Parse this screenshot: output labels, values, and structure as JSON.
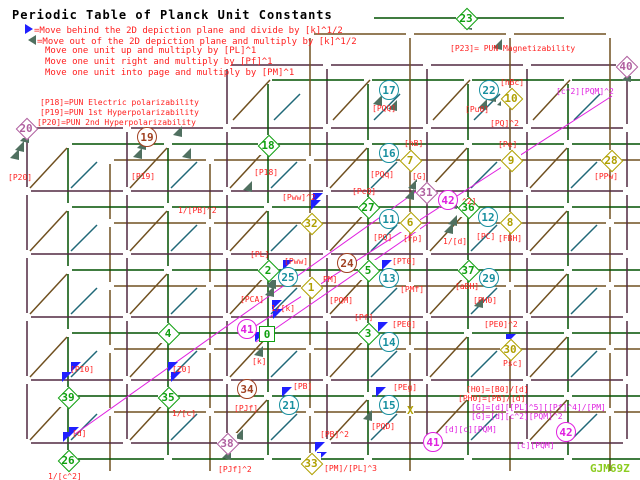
{
  "title": "Periodic Table of Planck Unit Constants",
  "legend": [
    {
      "icon": "blue-arrow-icon",
      "text": "=Move behind the 2D depiction plane and divide by [k]^1/2"
    },
    {
      "icon": "gray-arrow-icon",
      "text": "=Move out of the 2D depiction plane and multiply by [k]^1/2"
    },
    {
      "text": "Move one unit up and multiply by [PL]^1"
    },
    {
      "text": "Move one unit right and multiply by [Pf]^1"
    },
    {
      "text": "Move one unit into page and multiply by [PM]^1"
    }
  ],
  "definitions": [
    "[P18]=PUN Electric polarizability",
    "[P19]=PUN 1st Hyperpolarizability",
    "[P20]=PUN 2nd Hyperpolarizability"
  ],
  "colors": {
    "green": "#10a010",
    "teal": "#1890a0",
    "olive": "#b0a000",
    "brown": "#a04020",
    "purple": "#b060a0",
    "magenta": "#e020e0",
    "label": "#ff2020",
    "grid_front": "#502840",
    "grid_mid": "#005000",
    "grid_back": "#705020",
    "arrow_blue": "#2020ff",
    "arrow_gray": "#507060"
  },
  "nodes": [
    {
      "n": "23",
      "shape": "diamond",
      "color": "green"
    },
    {
      "n": "40",
      "shape": "diamond",
      "color": "purple"
    },
    {
      "n": "17",
      "shape": "circle",
      "color": "teal"
    },
    {
      "n": "22",
      "shape": "circle",
      "color": "teal"
    },
    {
      "n": "10",
      "shape": "diamond",
      "color": "olive"
    },
    {
      "n": "20",
      "shape": "diamond",
      "color": "purple"
    },
    {
      "n": "19",
      "shape": "circle",
      "color": "brown"
    },
    {
      "n": "18",
      "shape": "diamond",
      "color": "green"
    },
    {
      "n": "16",
      "shape": "circle",
      "color": "teal"
    },
    {
      "n": "7",
      "shape": "diamond",
      "color": "olive"
    },
    {
      "n": "9",
      "shape": "diamond",
      "color": "olive"
    },
    {
      "n": "28",
      "shape": "diamond",
      "color": "olive"
    },
    {
      "n": "31",
      "shape": "diamond",
      "color": "purple"
    },
    {
      "n": "42",
      "shape": "circle",
      "color": "magenta"
    },
    {
      "n": "27",
      "shape": "diamond",
      "color": "green"
    },
    {
      "n": "36",
      "shape": "diamond",
      "color": "green"
    },
    {
      "n": "11",
      "shape": "circle",
      "color": "teal"
    },
    {
      "n": "6",
      "shape": "diamond",
      "color": "olive"
    },
    {
      "n": "12",
      "shape": "circle",
      "color": "teal"
    },
    {
      "n": "8",
      "shape": "diamond",
      "color": "olive"
    },
    {
      "n": "32",
      "shape": "diamond",
      "color": "olive"
    },
    {
      "n": "24",
      "shape": "circle",
      "color": "brown"
    },
    {
      "n": "2",
      "shape": "diamond",
      "color": "green"
    },
    {
      "n": "5",
      "shape": "diamond",
      "color": "green"
    },
    {
      "n": "37",
      "shape": "diamond",
      "color": "green"
    },
    {
      "n": "25",
      "shape": "circle",
      "color": "teal"
    },
    {
      "n": "13",
      "shape": "circle",
      "color": "teal"
    },
    {
      "n": "29",
      "shape": "circle",
      "color": "teal"
    },
    {
      "n": "1",
      "shape": "diamond",
      "color": "olive"
    },
    {
      "n": "41",
      "shape": "circle",
      "color": "magenta"
    },
    {
      "n": "0",
      "shape": "square",
      "color": "green"
    },
    {
      "n": "4",
      "shape": "diamond",
      "color": "green"
    },
    {
      "n": "3",
      "shape": "diamond",
      "color": "green"
    },
    {
      "n": "14",
      "shape": "circle",
      "color": "teal"
    },
    {
      "n": "30",
      "shape": "diamond",
      "color": "olive"
    },
    {
      "n": "39",
      "shape": "diamond",
      "color": "green"
    },
    {
      "n": "35",
      "shape": "diamond",
      "color": "green"
    },
    {
      "n": "34",
      "shape": "circle",
      "color": "brown"
    },
    {
      "n": "21",
      "shape": "circle",
      "color": "teal"
    },
    {
      "n": "15",
      "shape": "circle",
      "color": "teal"
    },
    {
      "n": "26",
      "shape": "diamond",
      "color": "green"
    },
    {
      "n": "38",
      "shape": "diamond",
      "color": "purple"
    },
    {
      "n": "33",
      "shape": "diamond",
      "color": "olive"
    },
    {
      "n": "41",
      "shape": "circle",
      "color": "magenta"
    },
    {
      "n": "42",
      "shape": "circle",
      "color": "magenta"
    }
  ],
  "labels": [
    "[P23]= PUN Magnetizability",
    "[PQQ]",
    "[Pu0]",
    "[hBc]",
    "[PQ]^2",
    "[c^2][PQM]^2",
    "[P20]",
    "[P19]",
    "[P18]",
    "1/[PB]^2",
    "[PQq]",
    "[hB]",
    "[Pe]",
    "[PPw]",
    "[G]",
    "[PcQ]",
    "[PQ]",
    "[Fp]",
    "[Pww]^2",
    "1/[d]",
    "[PC]",
    "[FBH]",
    "^2]",
    "[PL]",
    "[Pww]",
    "PM]",
    "[PCA]",
    "[PQM]",
    "[PT0]",
    "[PMf]",
    "[aBH]",
    "[PH0]",
    "1/[k]",
    "[k]",
    "[Pf]",
    "[PE0]",
    "[PE0]^2",
    "Psc]",
    "[PI0]",
    "[Z0]",
    "1/[c]",
    "[PJf]",
    "[PB]",
    "[PEg]",
    "[PQD]",
    "[d]",
    "1/[c^2]",
    "[PJf]^2",
    "[PB]^2",
    "[PM]/[PL]^3",
    "[H0]=[B0]/[d]",
    "[PH0]=[PB]/[d]",
    "[G]=[d][[PL]^5][[Pf]^4]/[PM]",
    "[G]=[d][c^2][PQM]^2",
    "[d][c][PQM]",
    "[c][PQM]",
    "X"
  ],
  "logo": "GJM69Z"
}
